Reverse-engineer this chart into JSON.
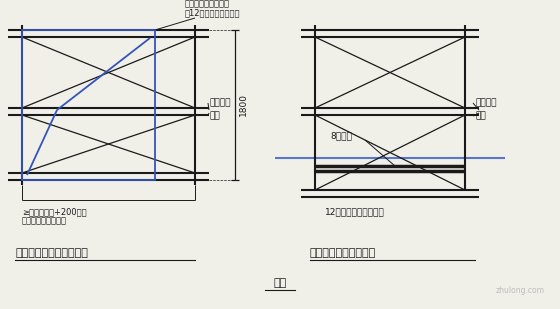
{
  "bg_color": "#f0efe8",
  "line_color": "#1a1a1a",
  "blue_color": "#3355bb",
  "floor_blue": "#5577cc",
  "title1": "窗洞口（室内临边）防护",
  "title2": "阳台或落地窗洞口防护",
  "caption": "图四",
  "label_ligan_1": "立杆通过穿墙螺杆洞",
  "label_ligan_2": "用12号铁丝固定于墙体",
  "label_aqw1": "安全绿网",
  "label_gg1": "钢管",
  "label_dim_1": "≥窗洞口尺寸+200，根",
  "label_dim_2": "据穿墙螺栓位置调节",
  "label_1800": "1800",
  "label_aqw2": "安全绿网",
  "label_gg2": "钢管",
  "label_8bg": "8厚钢板",
  "label_12pz": "12号膨胀螺丝楼板固定",
  "watermark": "zhulong.com"
}
